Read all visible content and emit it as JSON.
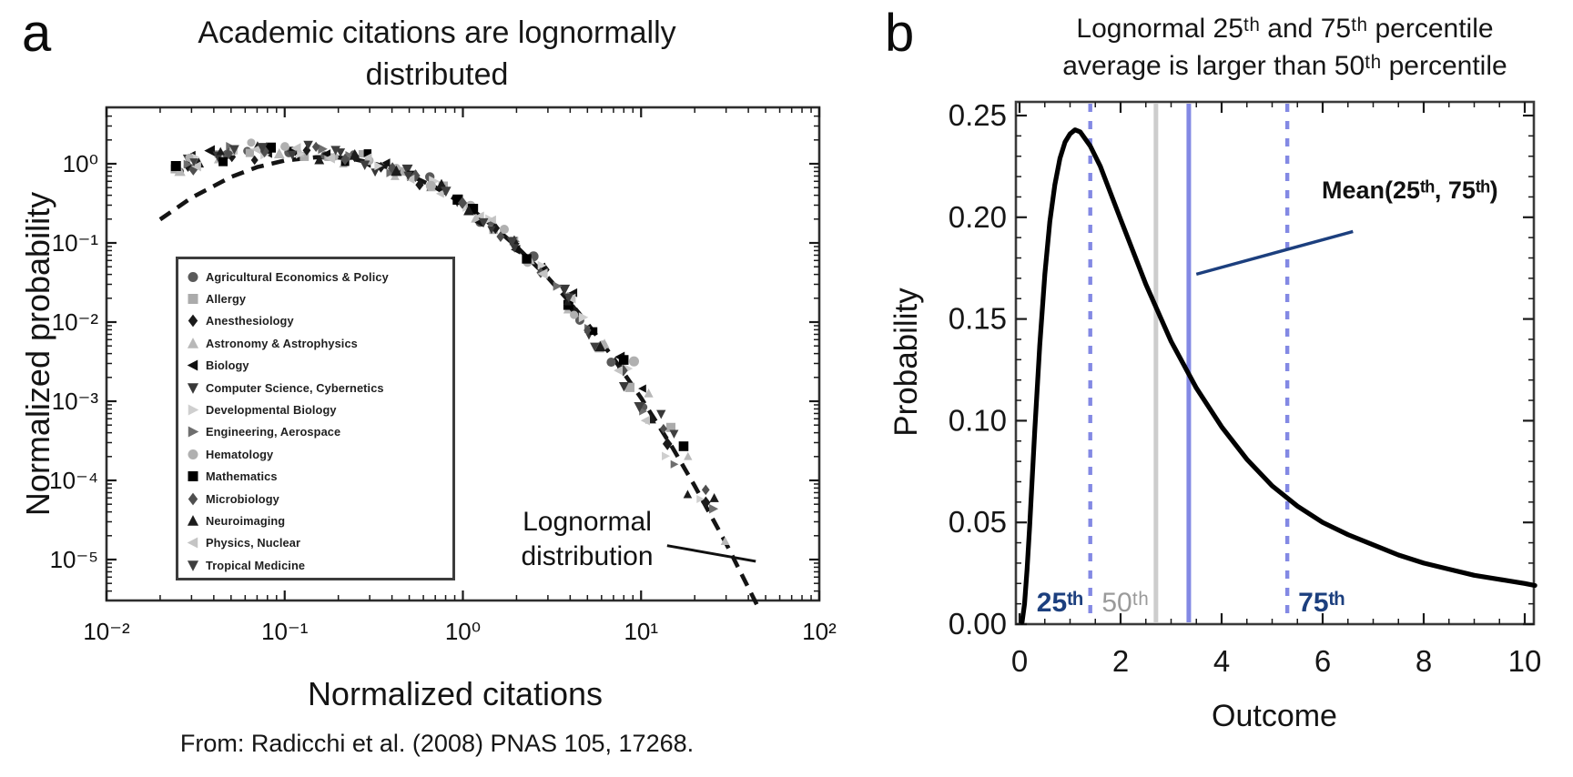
{
  "panel_a": {
    "label": "a",
    "title": "Academic citations are lognormally\ndistributed",
    "xlabel": "Normalized citations",
    "ylabel": "Normalized probability",
    "source": "From: Radicchi et al. (2008) PNAS 105, 17268.",
    "curve_annotation": "Lognormal\ndistribution"
  },
  "panel_b": {
    "label": "b",
    "title": "Lognormal 25ᵗʰ and 75ᵗʰ percentile\naverage is larger than 50ᵗʰ percentile",
    "xlabel": "Outcome",
    "ylabel": "Probability",
    "mean_annotation": "Mean(25ᵗʰ, 75ᵗʰ)"
  },
  "chart_data": [
    {
      "panel": "a",
      "type": "scatter",
      "title": "Academic citations are lognormally distributed",
      "xlabel": "Normalized citations",
      "ylabel": "Normalized probability",
      "x_scale": "log",
      "y_scale": "log",
      "xlim": [
        0.01,
        100
      ],
      "ylim": [
        2.5e-06,
        5.0
      ],
      "x_tick_values": [
        0.01,
        0.1,
        1,
        10,
        100
      ],
      "x_tick_labels": [
        "10⁻²",
        "10⁻¹",
        "10⁰",
        "10¹",
        "10²"
      ],
      "y_tick_values": [
        1,
        0.1,
        0.01,
        0.001,
        0.0001,
        1e-05
      ],
      "y_tick_labels": [
        "10⁰",
        "10⁻¹",
        "10⁻²",
        "10⁻³",
        "10⁻⁴",
        "10⁻⁵"
      ],
      "fit_curve": {
        "label": "Lognormal distribution",
        "style": "dashed",
        "color": "#141414",
        "mu": -0.605,
        "sigma": 1.1,
        "x": [
          0.02,
          0.03,
          0.05,
          0.07,
          0.1,
          0.15,
          0.2,
          0.25,
          0.3,
          0.4,
          0.5,
          0.7,
          1.0,
          1.2,
          1.5,
          2,
          3,
          4,
          5,
          7,
          10,
          15,
          20,
          25,
          30,
          45
        ],
        "y": [
          0.198,
          0.373,
          0.682,
          0.907,
          1.1,
          1.21,
          1.2,
          1.13,
          1.04,
          0.871,
          0.723,
          0.505,
          0.312,
          0.234,
          0.159,
          0.09,
          0.0365,
          0.0176,
          0.0096,
          0.0035,
          0.0011,
          0.00026,
          8.5e-05,
          3.4e-05,
          1.6e-05,
          2.6e-06
        ],
        "pointer_line": {
          "x1": 14,
          "y1": 1.5e-05,
          "x2": 44,
          "y2": 9.5e-06
        }
      },
      "series": [
        {
          "name": "Agricultural Economics & Policy",
          "marker": "circle",
          "color": "#5a5a5a"
        },
        {
          "name": "Allergy",
          "marker": "square",
          "color": "#ababab"
        },
        {
          "name": "Anesthesiology",
          "marker": "diamond",
          "color": "#1a1a1a"
        },
        {
          "name": "Astronomy & Astrophysics",
          "marker": "triangle-up",
          "color": "#b8b8b8"
        },
        {
          "name": "Biology",
          "marker": "triangle-left",
          "color": "#101010"
        },
        {
          "name": "Computer Science, Cybernetics",
          "marker": "triangle-down",
          "color": "#383838"
        },
        {
          "name": "Developmental Biology",
          "marker": "triangle-right",
          "color": "#cfcfcf"
        },
        {
          "name": "Engineering, Aerospace",
          "marker": "triangle-right",
          "color": "#6e6e6e"
        },
        {
          "name": "Hematology",
          "marker": "circle",
          "color": "#b0b0b0"
        },
        {
          "name": "Mathematics",
          "marker": "square",
          "color": "#000000"
        },
        {
          "name": "Microbiology",
          "marker": "diamond",
          "color": "#4f4f4f"
        },
        {
          "name": "Neuroimaging",
          "marker": "triangle-up",
          "color": "#1c1c1c"
        },
        {
          "name": "Physics, Nuclear",
          "marker": "triangle-left",
          "color": "#c4c4c4"
        },
        {
          "name": "Tropical Medicine",
          "marker": "triangle-down",
          "color": "#3f3f3f"
        }
      ],
      "scatter_style": {
        "seed": 11,
        "points_per_series": 14,
        "marker_size": 9,
        "note": "points collapse onto the universal lognormal fit curve; jitter grows in the tail"
      }
    },
    {
      "panel": "b",
      "type": "line",
      "title": "Lognormal 25th and 75th percentile average is larger than 50th percentile",
      "xlabel": "Outcome",
      "ylabel": "Probability",
      "xlim": [
        0,
        10.2
      ],
      "ylim": [
        0,
        0.257
      ],
      "x_tick_values": [
        0,
        2,
        4,
        6,
        8,
        10
      ],
      "x_tick_labels": [
        "0",
        "2",
        "4",
        "6",
        "8",
        "10"
      ],
      "y_tick_values": [
        0.0,
        0.05,
        0.1,
        0.15,
        0.2,
        0.25
      ],
      "y_tick_labels": [
        "0.00",
        "0.05",
        "0.10",
        "0.15",
        "0.20",
        "0.25"
      ],
      "curve": {
        "color": "#000000",
        "mu": 1.0,
        "sigma": 0.95,
        "x": [
          0.05,
          0.1,
          0.15,
          0.2,
          0.3,
          0.4,
          0.5,
          0.6,
          0.7,
          0.8,
          0.9,
          1.0,
          1.1,
          1.2,
          1.4,
          1.6,
          1.8,
          2.0,
          2.5,
          3.0,
          3.5,
          4.0,
          4.5,
          5.0,
          5.5,
          6.0,
          6.5,
          7.0,
          7.5,
          8.0,
          8.5,
          9.0,
          9.5,
          10.0,
          10.2
        ],
        "y": [
          0.001,
          0.01,
          0.027,
          0.048,
          0.095,
          0.137,
          0.172,
          0.198,
          0.216,
          0.229,
          0.237,
          0.241,
          0.243,
          0.242,
          0.235,
          0.225,
          0.212,
          0.199,
          0.167,
          0.139,
          0.116,
          0.097,
          0.081,
          0.068,
          0.058,
          0.05,
          0.044,
          0.039,
          0.034,
          0.03,
          0.027,
          0.024,
          0.022,
          0.02,
          0.019
        ]
      },
      "vlines": [
        {
          "label": "25ᵗʰ",
          "x": 1.4,
          "style": "dashed",
          "color": "#8389e4",
          "label_color": "#1c3f7e",
          "label_side": "left",
          "bold": true
        },
        {
          "label": "50ᵗʰ",
          "x": 2.7,
          "style": "solid",
          "color": "#cdcdcd",
          "label_color": "#9a9a9a",
          "label_side": "left",
          "bold": false
        },
        {
          "label": "",
          "x": 3.35,
          "style": "solid",
          "color": "#8389e4",
          "label_color": "#1c3f7e",
          "label_side": "none",
          "bold": false,
          "role": "mean-25-75"
        },
        {
          "label": "75ᵗʰ",
          "x": 5.3,
          "style": "dashed",
          "color": "#8389e4",
          "label_color": "#1c3f7e",
          "label_side": "right",
          "bold": true
        }
      ],
      "annotation": {
        "text": "Mean(25ᵗʰ, 75ᵗʰ)",
        "color": "#1c3f7e",
        "line": {
          "x1": 3.5,
          "y1": 0.172,
          "x2": 6.6,
          "y2": 0.193
        }
      }
    }
  ]
}
